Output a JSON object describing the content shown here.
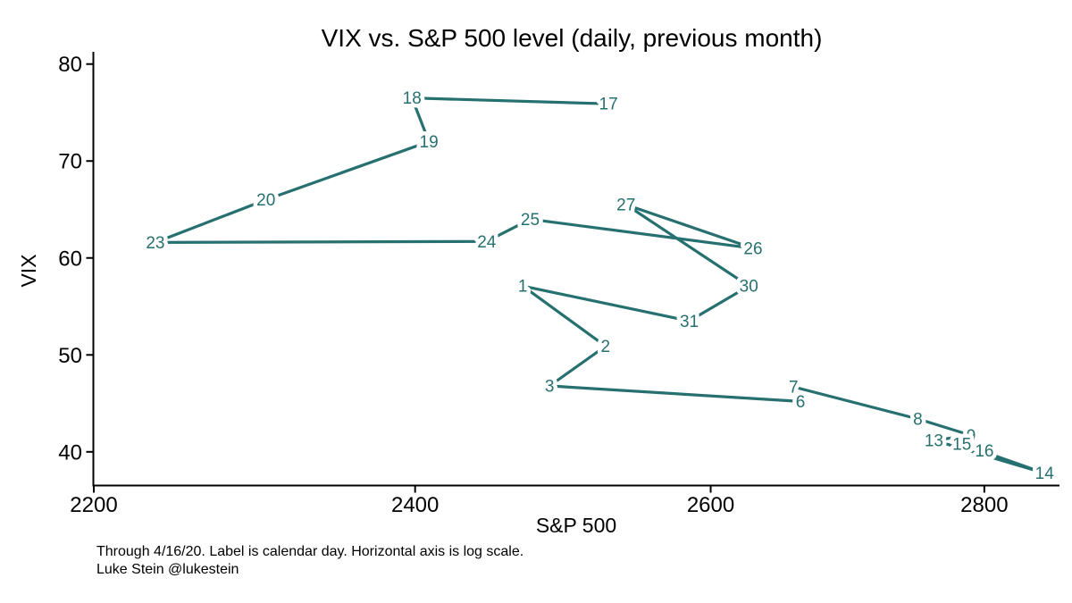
{
  "page": {
    "background": "#ffffff"
  },
  "colors": {
    "series": "#26706f",
    "axis": "#000000",
    "text": "#000000"
  },
  "footnote": {
    "line1": "Through 4/16/20. Label is calendar day. Horizontal axis is log scale.",
    "line2": "Luke Stein @lukestein"
  },
  "chart_data": {
    "type": "line",
    "title": "VIX vs. S&P 500 level (daily, previous month)",
    "xlabel": "S&P 500",
    "ylabel": "VIX",
    "x_scale": "log",
    "grid": false,
    "legend": "none",
    "x_ticks": [
      2200,
      2400,
      2600,
      2800
    ],
    "y_ticks": [
      40,
      50,
      60,
      70,
      80
    ],
    "xlim": [
      2200,
      2870
    ],
    "ylim": [
      36.3,
      81.5
    ],
    "label_meaning": "calendar day",
    "points": [
      {
        "day": "17",
        "spx": 2529,
        "vix": 75.9
      },
      {
        "day": "18",
        "spx": 2398,
        "vix": 76.5
      },
      {
        "day": "19",
        "spx": 2409,
        "vix": 72.0
      },
      {
        "day": "20",
        "spx": 2305,
        "vix": 66.0
      },
      {
        "day": "23",
        "spx": 2237,
        "vix": 61.6
      },
      {
        "day": "24",
        "spx": 2447,
        "vix": 61.7
      },
      {
        "day": "25",
        "spx": 2476,
        "vix": 64.0
      },
      {
        "day": "26",
        "spx": 2630,
        "vix": 61.0
      },
      {
        "day": "27",
        "spx": 2541,
        "vix": 65.5
      },
      {
        "day": "30",
        "spx": 2627,
        "vix": 57.1
      },
      {
        "day": "31",
        "spx": 2585,
        "vix": 53.5
      },
      {
        "day": "1",
        "spx": 2471,
        "vix": 57.1
      },
      {
        "day": "2",
        "spx": 2527,
        "vix": 50.9
      },
      {
        "day": "3",
        "spx": 2489,
        "vix": 46.8
      },
      {
        "day": "6",
        "spx": 2664,
        "vix": 45.2
      },
      {
        "day": "7",
        "spx": 2659,
        "vix": 46.7
      },
      {
        "day": "8",
        "spx": 2750,
        "vix": 43.4
      },
      {
        "day": "9",
        "spx": 2790,
        "vix": 41.7
      },
      {
        "day": "13",
        "spx": 2762,
        "vix": 41.2
      },
      {
        "day": "14",
        "spx": 2846,
        "vix": 37.8
      },
      {
        "day": "15",
        "spx": 2783,
        "vix": 40.8
      },
      {
        "day": "16",
        "spx": 2800,
        "vix": 40.1
      }
    ]
  }
}
